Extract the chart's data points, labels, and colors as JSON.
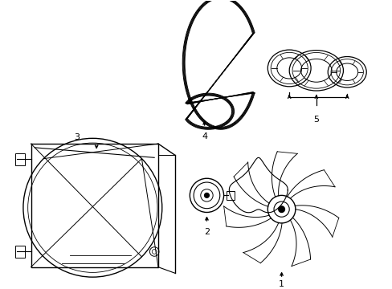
{
  "background_color": "#ffffff",
  "line_color": "#000000",
  "line_width": 1.0,
  "fig_width": 4.89,
  "fig_height": 3.6,
  "dpi": 100
}
